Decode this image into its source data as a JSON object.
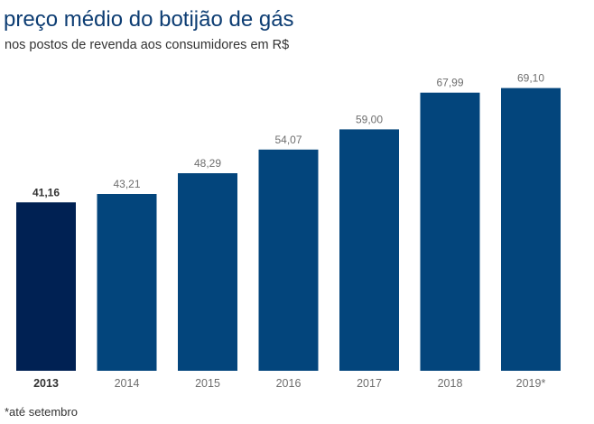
{
  "header": {
    "title": "preço médio do botijão de gás",
    "subtitle": "nos postos de revenda aos consumidores em R$"
  },
  "footnote": "*até setembro",
  "colors": {
    "bar": "#03457c",
    "bar_highlight": "#002153",
    "title": "#0d3d73"
  },
  "chart_data": {
    "type": "bar",
    "title": "preço médio do botijão de gás",
    "subtitle": "nos postos de revenda aos consumidores em R$",
    "xlabel": "",
    "ylabel": "",
    "categories": [
      "2013",
      "2014",
      "2015",
      "2016",
      "2017",
      "2018",
      "2019*"
    ],
    "values": [
      41.16,
      43.21,
      48.29,
      54.07,
      59.0,
      67.99,
      69.1
    ],
    "value_labels": [
      "41,16",
      "43,21",
      "48,29",
      "54,07",
      "59,00",
      "67,99",
      "69,10"
    ],
    "highlight_index": 0,
    "ylim": [
      0,
      70
    ],
    "grid": false,
    "legend": "none"
  }
}
